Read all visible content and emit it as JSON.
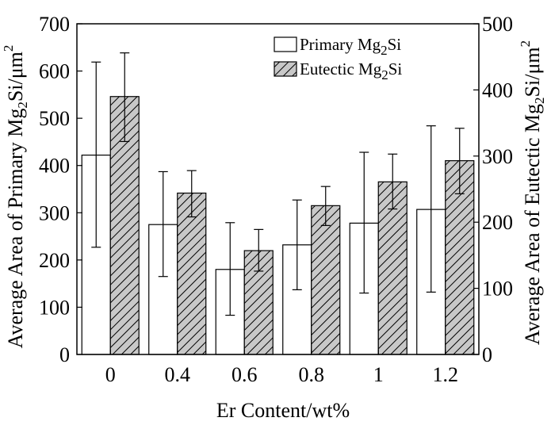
{
  "chart_data": {
    "type": "bar",
    "categories": [
      "0",
      "0.4",
      "0.6",
      "0.8",
      "1",
      "1.2"
    ],
    "xlabel": "Er Content/wt%",
    "ylabel_left": {
      "base": "Average Area of Primary Mg",
      "sub": "2",
      "mid": "Si/μm",
      "sup": "2"
    },
    "ylabel_right": {
      "base": "Average Area of Eutectic Mg",
      "sub": "2",
      "mid": "Si/μm",
      "sup": "2"
    },
    "y_left": {
      "lim": [
        0,
        700
      ],
      "ticks": [
        "0",
        "100",
        "200",
        "300",
        "400",
        "500",
        "600",
        "700"
      ]
    },
    "y_right": {
      "lim": [
        0,
        500
      ],
      "ticks": [
        "0",
        "100",
        "200",
        "300",
        "400",
        "500"
      ]
    },
    "series": [
      {
        "name": {
          "base": "Primary Mg",
          "sub": "2",
          "rest": "Si"
        },
        "axis": "left",
        "fill": "#ffffff",
        "values": [
          422,
          275,
          180,
          232,
          278,
          307
        ],
        "error_low": [
          227,
          165,
          83,
          137,
          130,
          132
        ],
        "error_high": [
          619,
          387,
          279,
          327,
          428,
          484
        ]
      },
      {
        "name": {
          "base": "Eutectic Mg",
          "sub": "2",
          "rest": "Si"
        },
        "axis": "right",
        "fill": "#c8c8c8",
        "hatch": true,
        "values": [
          390,
          244,
          157,
          225,
          261,
          293
        ],
        "error_low": [
          322,
          208,
          126,
          195,
          220,
          243
        ],
        "error_high": [
          456,
          278,
          189,
          254,
          303,
          342
        ]
      }
    ],
    "legend_position": "top-right",
    "grid": false
  }
}
